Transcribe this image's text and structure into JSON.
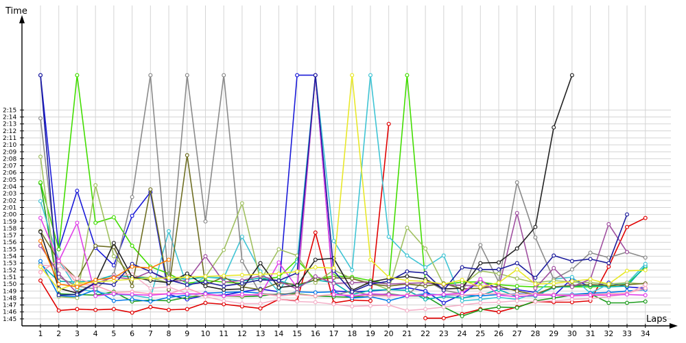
{
  "chart_data": {
    "type": "line",
    "title": "",
    "xlabel": "Laps",
    "ylabel": "Time",
    "grid": true,
    "x": [
      1,
      2,
      3,
      4,
      5,
      6,
      7,
      8,
      9,
      10,
      11,
      12,
      13,
      14,
      15,
      16,
      17,
      18,
      19,
      20,
      21,
      22,
      23,
      24,
      25,
      26,
      27,
      28,
      29,
      30,
      31,
      32,
      33,
      34
    ],
    "x_tick_labels": [
      "1",
      "2",
      "3",
      "4",
      "5",
      "6",
      "7",
      "8",
      "9",
      "10",
      "11",
      "12",
      "13",
      "14",
      "15",
      "16",
      "17",
      "18",
      "19",
      "20",
      "21",
      "22",
      "23",
      "24",
      "25",
      "26",
      "27",
      "28",
      "29",
      "30",
      "31",
      "32",
      "33",
      "34"
    ],
    "y_tick_labels": [
      "1:45",
      "1:46",
      "1:47",
      "1:48",
      "1:49",
      "1:50",
      "1:51",
      "1:52",
      "1:53",
      "1:54",
      "1:55",
      "1:56",
      "1:57",
      "1:58",
      "1:59",
      "2:00",
      "2:01",
      "2:02",
      "2:03",
      "2:04",
      "2:05",
      "2:06",
      "2:07",
      "2:08",
      "2:09",
      "2:10",
      "2:11",
      "2:12",
      "2:13",
      "2:14",
      "2:15"
    ],
    "y_tick_values": [
      105,
      106,
      107,
      108,
      109,
      110,
      111,
      112,
      113,
      114,
      115,
      116,
      117,
      118,
      119,
      120,
      121,
      122,
      123,
      124,
      125,
      126,
      127,
      128,
      129,
      130,
      131,
      132,
      133,
      134,
      135
    ],
    "ylim": [
      104,
      137.5
    ],
    "xlim": [
      0.5,
      34.3
    ],
    "y_unit": "seconds",
    "series": [
      {
        "color": "#e00000",
        "values": [
          110.5,
          106.2,
          106.4,
          106.3,
          106.4,
          105.9,
          106.7,
          106.3,
          106.4,
          107.3,
          107.1,
          106.8,
          106.5,
          107.8,
          107.6,
          117.4,
          107.3,
          107.7,
          107.6,
          133.0,
          null,
          105.1,
          105.1,
          105.7,
          106.4,
          106.0,
          106.7,
          107.5,
          107.4,
          107.4,
          107.6,
          112.5,
          118.2,
          119.5
        ]
      },
      {
        "color": "#1a1ad8",
        "values": [
          140,
          115.0,
          123.4,
          115.2,
          112.7,
          119.8,
          123.2,
          108.5,
          107.8,
          108.4,
          108.4,
          108.9,
          109.3,
          108.9,
          140,
          140,
          109.0,
          108.9,
          109.0,
          109.2,
          109.5,
          109.0,
          107.3,
          108.5,
          110.5,
          109.3,
          109.2,
          108.8,
          108.3,
          110.8,
          109.6,
          110.2,
          109.6,
          109.4
        ]
      },
      {
        "color": "#1c9c1c",
        "values": [
          124.5,
          108.6,
          108.5,
          108.4,
          108.9,
          107.5,
          107.7,
          107.6,
          108.1,
          108.4,
          108.3,
          108.2,
          108.3,
          108.6,
          108.6,
          108.3,
          108.2,
          108.1,
          108.4,
          108.6,
          108.3,
          108.3,
          106.7,
          105.4,
          106.3,
          106.7,
          106.6,
          107.6,
          108.0,
          108.4,
          108.6,
          107.3,
          107.3,
          107.5
        ]
      },
      {
        "color": "#42dd00",
        "values": [
          124.6,
          115.0,
          140,
          118.8,
          119.6,
          115.5,
          112.5,
          111.5,
          110.1,
          110.5,
          110.3,
          110.1,
          110.6,
          111.0,
          113.5,
          110.6,
          111.2,
          111.0,
          110.5,
          110.0,
          140,
          110.3,
          109.9,
          110.3,
          110.3,
          109.9,
          109.7,
          109.6,
          109.6,
          109.6,
          109.6,
          109.7,
          110.0,
          112.4
        ]
      },
      {
        "color": "#00b0b0",
        "values": [
          112.9,
          110.4,
          110.3,
          110.5,
          111.3,
          111.0,
          110.8,
          110.9,
          110.7,
          111.0,
          110.8,
          110.4,
          110.9,
          110.5,
          109.7,
          110.6,
          110.2,
          108.5,
          109.1,
          109.2,
          109.1,
          107.8,
          108.2,
          108.0,
          108.4,
          109.2,
          108.2,
          108.3,
          109.5,
          109.7,
          109.8,
          109.6,
          109.7,
          112.6
        ]
      },
      {
        "color": "#3fc4d4",
        "values": [
          121.9,
          113.4,
          109.3,
          108.9,
          108.5,
          108.4,
          108.0,
          117.6,
          109.6,
          111.0,
          110.9,
          116.8,
          111.8,
          108.9,
          113.2,
          140,
          116.2,
          112.0,
          140,
          116.8,
          114.1,
          112.4,
          114.1,
          107.6,
          107.8,
          108.1,
          107.8,
          108.7,
          110.7,
          111.0,
          108.7,
          110.0,
          110.1,
          112.9
        ]
      },
      {
        "color": "#0078e8",
        "values": [
          113.3,
          108.3,
          108.2,
          109.2,
          107.6,
          107.8,
          107.5,
          108.1,
          108.4,
          108.7,
          108.8,
          108.9,
          108.7,
          108.3,
          108.9,
          108.8,
          108.9,
          108.0,
          108.2,
          107.6,
          108.3,
          108.6,
          108.4,
          108.4,
          108.3,
          108.5,
          108.6,
          108.6,
          108.5,
          108.5,
          108.7,
          108.8,
          109.0,
          109.2
        ]
      },
      {
        "color": "#8a8a8a",
        "values": [
          133.8,
          111.0,
          109.7,
          109.3,
          111.4,
          122.5,
          140,
          110.3,
          140,
          119.0,
          140,
          113.3,
          108.6,
          108.5,
          108.8,
          140,
          108.4,
          109.0,
          108.4,
          108.4,
          108.4,
          110.6,
          109.1,
          108.6,
          115.6,
          110.3,
          124.6,
          116.7,
          110.7,
          112.1,
          114.5,
          113.8,
          114.6,
          113.8
        ]
      },
      {
        "color": "#a0c060",
        "values": [
          128.3,
          108.2,
          108.0,
          124.2,
          114.0,
          111.2,
          110.9,
          110.2,
          111.1,
          111.0,
          114.9,
          121.6,
          110.5,
          115.0,
          114.1,
          110.2,
          112.0,
          110.8,
          110.2,
          109.2,
          118.1,
          115.1,
          109.9,
          109.8,
          111.9,
          111.5,
          110.8,
          110.2,
          110.5,
          110.3,
          110.2,
          110.0,
          110.2,
          110.0
        ]
      },
      {
        "color": "#6e6e22",
        "values": [
          117.6,
          113.3,
          110.7,
          115.5,
          115.3,
          109.7,
          123.6,
          109.2,
          128.5,
          109.9,
          111.0,
          109.6,
          109.2,
          110.2,
          109.9,
          110.6,
          110.9,
          110.8,
          110.0,
          109.7,
          110.0,
          109.7,
          110.1,
          109.3,
          109.4,
          109.7,
          109.0,
          108.5,
          109.6,
          109.8,
          109.9,
          109.8,
          109.9,
          110.1
        ]
      },
      {
        "color": "#ffa0b8",
        "values": [
          111.7,
          113.5,
          110.0,
          109.8,
          108.8,
          108.9,
          108.6,
          108.6,
          109.4,
          108.4,
          108.3,
          108.3,
          108.6,
          108.3,
          108.5,
          108.3,
          108.5,
          108.4,
          108.3,
          108.3,
          108.4,
          108.4,
          108.5,
          108.4,
          108.6,
          108.6,
          108.5,
          108.6,
          108.5,
          108.4,
          108.5,
          108.6,
          108.7,
          109.4
        ]
      },
      {
        "color": "#f4b0c8",
        "values": [
          112.7,
          112.6,
          110.8,
          110.0,
          111.2,
          111.4,
          109.4,
          109.6,
          108.6,
          108.2,
          107.6,
          107.2,
          107.2,
          107.8,
          107.5,
          107.4,
          107.1,
          106.8,
          106.9,
          107.0,
          106.2,
          106.4,
          106.7,
          107.0,
          107.3,
          107.4,
          107.6,
          107.5,
          107.6,
          107.8,
          107.9,
          108.2,
          108.6,
          109.9
        ]
      },
      {
        "color": "#e040e8",
        "values": [
          119.5,
          113.3,
          118.8,
          108.3,
          108.6,
          108.5,
          108.4,
          108.6,
          108.6,
          108.6,
          108.3,
          108.5,
          108.4,
          113.1,
          109.5,
          140,
          108.5,
          108.3,
          108.6,
          108.5,
          108.3,
          108.4,
          108.5,
          108.7,
          110.7,
          108.4,
          108.2,
          108.4,
          108.4,
          108.3,
          108.4,
          108.4,
          108.5,
          108.4
        ]
      },
      {
        "color": "#a050a0",
        "values": [
          115.5,
          111.5,
          108.7,
          110.1,
          111.0,
          110.7,
          111.8,
          110.4,
          110.5,
          114.0,
          110.3,
          110.5,
          111.2,
          110.4,
          109.3,
          111.1,
          110.1,
          110.2,
          110.3,
          110.0,
          110.1,
          110.2,
          109.9,
          109.8,
          109.7,
          109.5,
          120.2,
          109.4,
          112.3,
          109.6,
          110.7,
          118.6,
          114.6,
          null
        ]
      },
      {
        "color": "#222222",
        "values": [
          117.5,
          109.4,
          108.7,
          110.2,
          115.9,
          111.0,
          110.5,
          110.2,
          111.5,
          109.7,
          109.2,
          109.3,
          113.0,
          109.5,
          109.8,
          113.5,
          113.7,
          109.1,
          110.3,
          110.8,
          111.1,
          110.7,
          109.3,
          109.4,
          113.0,
          113.1,
          115.1,
          118.2,
          132.5,
          140,
          null,
          null,
          null,
          null
        ]
      },
      {
        "color": "#1c1c9c",
        "values": [
          140,
          108.4,
          108.5,
          110.2,
          109.9,
          112.9,
          111.8,
          110.6,
          109.9,
          110.3,
          109.7,
          110.1,
          110.6,
          110.5,
          111.6,
          140,
          111.9,
          108.9,
          110.0,
          110.4,
          111.8,
          111.6,
          109.1,
          112.4,
          112.1,
          112.1,
          113.0,
          110.9,
          114.1,
          113.3,
          113.6,
          113.0,
          120.0,
          null
        ]
      },
      {
        "color": "#e8e828",
        "values": [
          112.5,
          109.2,
          110.1,
          110.3,
          110.5,
          110.7,
          110.8,
          110.9,
          111.0,
          111.1,
          111.2,
          111.3,
          111.4,
          111.5,
          111.8,
          112.4,
          112.3,
          140,
          113.5,
          111.0,
          110.5,
          110.4,
          110.0,
          110.6,
          109.6,
          110.2,
          112.1,
          110.0,
          110.1,
          110.4,
          110.7,
          110.0,
          111.9,
          112.0
        ]
      },
      {
        "color": "#ff7a00",
        "values": [
          116.2,
          110.0,
          109.6,
          110.6,
          110.9,
          112.5,
          112.3,
          113.5,
          null,
          null,
          null,
          null,
          null,
          null,
          null,
          null,
          null,
          null,
          null,
          null,
          null,
          null,
          null,
          null,
          null,
          null,
          null,
          null,
          null,
          null,
          null,
          null,
          null,
          null
        ]
      }
    ]
  }
}
